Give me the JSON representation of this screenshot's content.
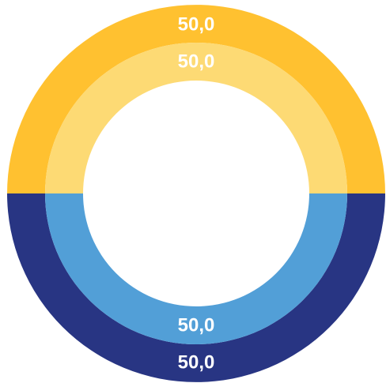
{
  "chart_data": {
    "type": "pie",
    "subtype": "nested-donut",
    "title": "",
    "rings": [
      {
        "ring": "outer",
        "slices": [
          {
            "value": 50.0,
            "label": "50,0",
            "color": "#FFC130"
          },
          {
            "value": 50.0,
            "label": "50,0",
            "color": "#283583"
          }
        ]
      },
      {
        "ring": "inner",
        "slices": [
          {
            "value": 50.0,
            "label": "50,0",
            "color": "#FDDA74"
          },
          {
            "value": 50.0,
            "label": "50,0",
            "color": "#529FD7"
          }
        ]
      }
    ],
    "label_color": "#ffffff",
    "legend": "none"
  }
}
